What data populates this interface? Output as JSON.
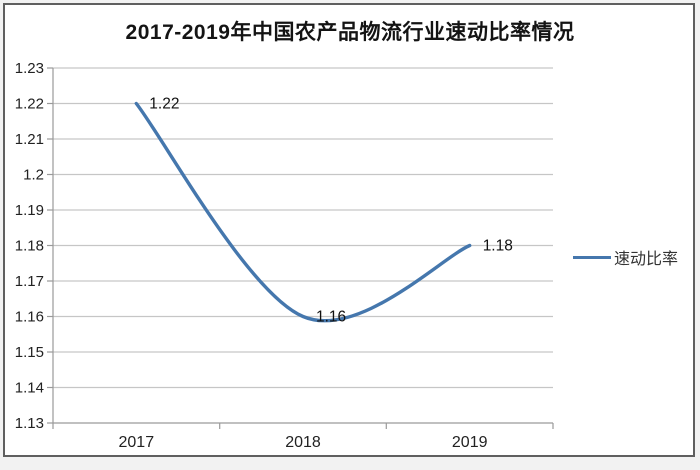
{
  "title": "2017-2019年中国农产品物流行业速动比率情况",
  "legend": {
    "label": "速动比率"
  },
  "colors": {
    "line": "#4577ad",
    "gridline": "#c6c6c6",
    "axis": "#9a9a9a",
    "tick_text": "#222222",
    "data_label_text": "#111111",
    "frame_border": "#5f5f5f",
    "background": "#ffffff"
  },
  "chart_data": {
    "type": "line",
    "smooth": true,
    "grid": true,
    "legend_position": "right",
    "title": "2017-2019年中国农产品物流行业速动比率情况",
    "xlabel": "",
    "ylabel": "",
    "categories": [
      "2017",
      "2018",
      "2019"
    ],
    "series": [
      {
        "name": "速动比率",
        "values": [
          1.22,
          1.16,
          1.18
        ]
      }
    ],
    "data_labels": [
      "1.22",
      "1.16",
      "1.18"
    ],
    "ylim": [
      1.13,
      1.23
    ],
    "ytick_step": 0.01,
    "ytick_labels": [
      "1.23",
      "1.22",
      "1.21",
      "1.2",
      "1.19",
      "1.18",
      "1.17",
      "1.16",
      "1.15",
      "1.14",
      "1.13"
    ]
  }
}
